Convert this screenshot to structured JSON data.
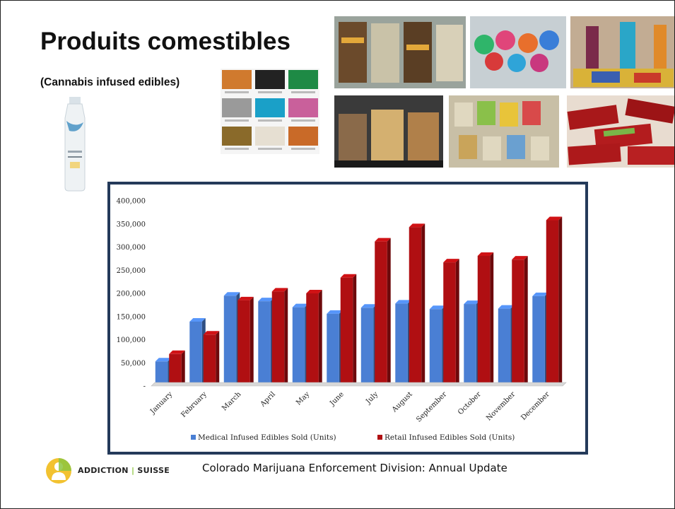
{
  "slide": {
    "title": "Produits comestibles",
    "subtitle": "(Cannabis infused edibles)",
    "footer_source": "Colorado Marijuana Enforcement Division: Annual Update",
    "logo": {
      "word1": "ADDICTION",
      "separator": "|",
      "word2": "SUISSE"
    }
  },
  "colors": {
    "medical": "#4a7fd4",
    "retail": "#b00f12",
    "frame": "#243a5a",
    "logo_green": "#8dc63f"
  },
  "chart_data": {
    "type": "bar",
    "title": "",
    "xlabel": "",
    "ylabel": "",
    "ylim": [
      0,
      400000
    ],
    "y_ticks": [
      "-",
      "50,000",
      "100,000",
      "150,000",
      "200,000",
      "250,000",
      "300,000",
      "350,000",
      "400,000"
    ],
    "categories": [
      "January",
      "February",
      "March",
      "April",
      "May",
      "June",
      "July",
      "August",
      "September",
      "October",
      "November",
      "December"
    ],
    "series": [
      {
        "name": "Medical Infused Edibles Sold (Units)",
        "color": "#4a7fd4",
        "values": [
          53000,
          139000,
          195000,
          183000,
          170000,
          156000,
          169000,
          178000,
          166000,
          177000,
          167000,
          194000
        ]
      },
      {
        "name": "Retail Infused Edibles Sold (Units)",
        "color": "#b00f12",
        "values": [
          69000,
          111000,
          185000,
          204000,
          200000,
          234000,
          312000,
          343000,
          267000,
          281000,
          273000,
          358000
        ]
      }
    ],
    "grid": false,
    "legend": "bottom"
  }
}
